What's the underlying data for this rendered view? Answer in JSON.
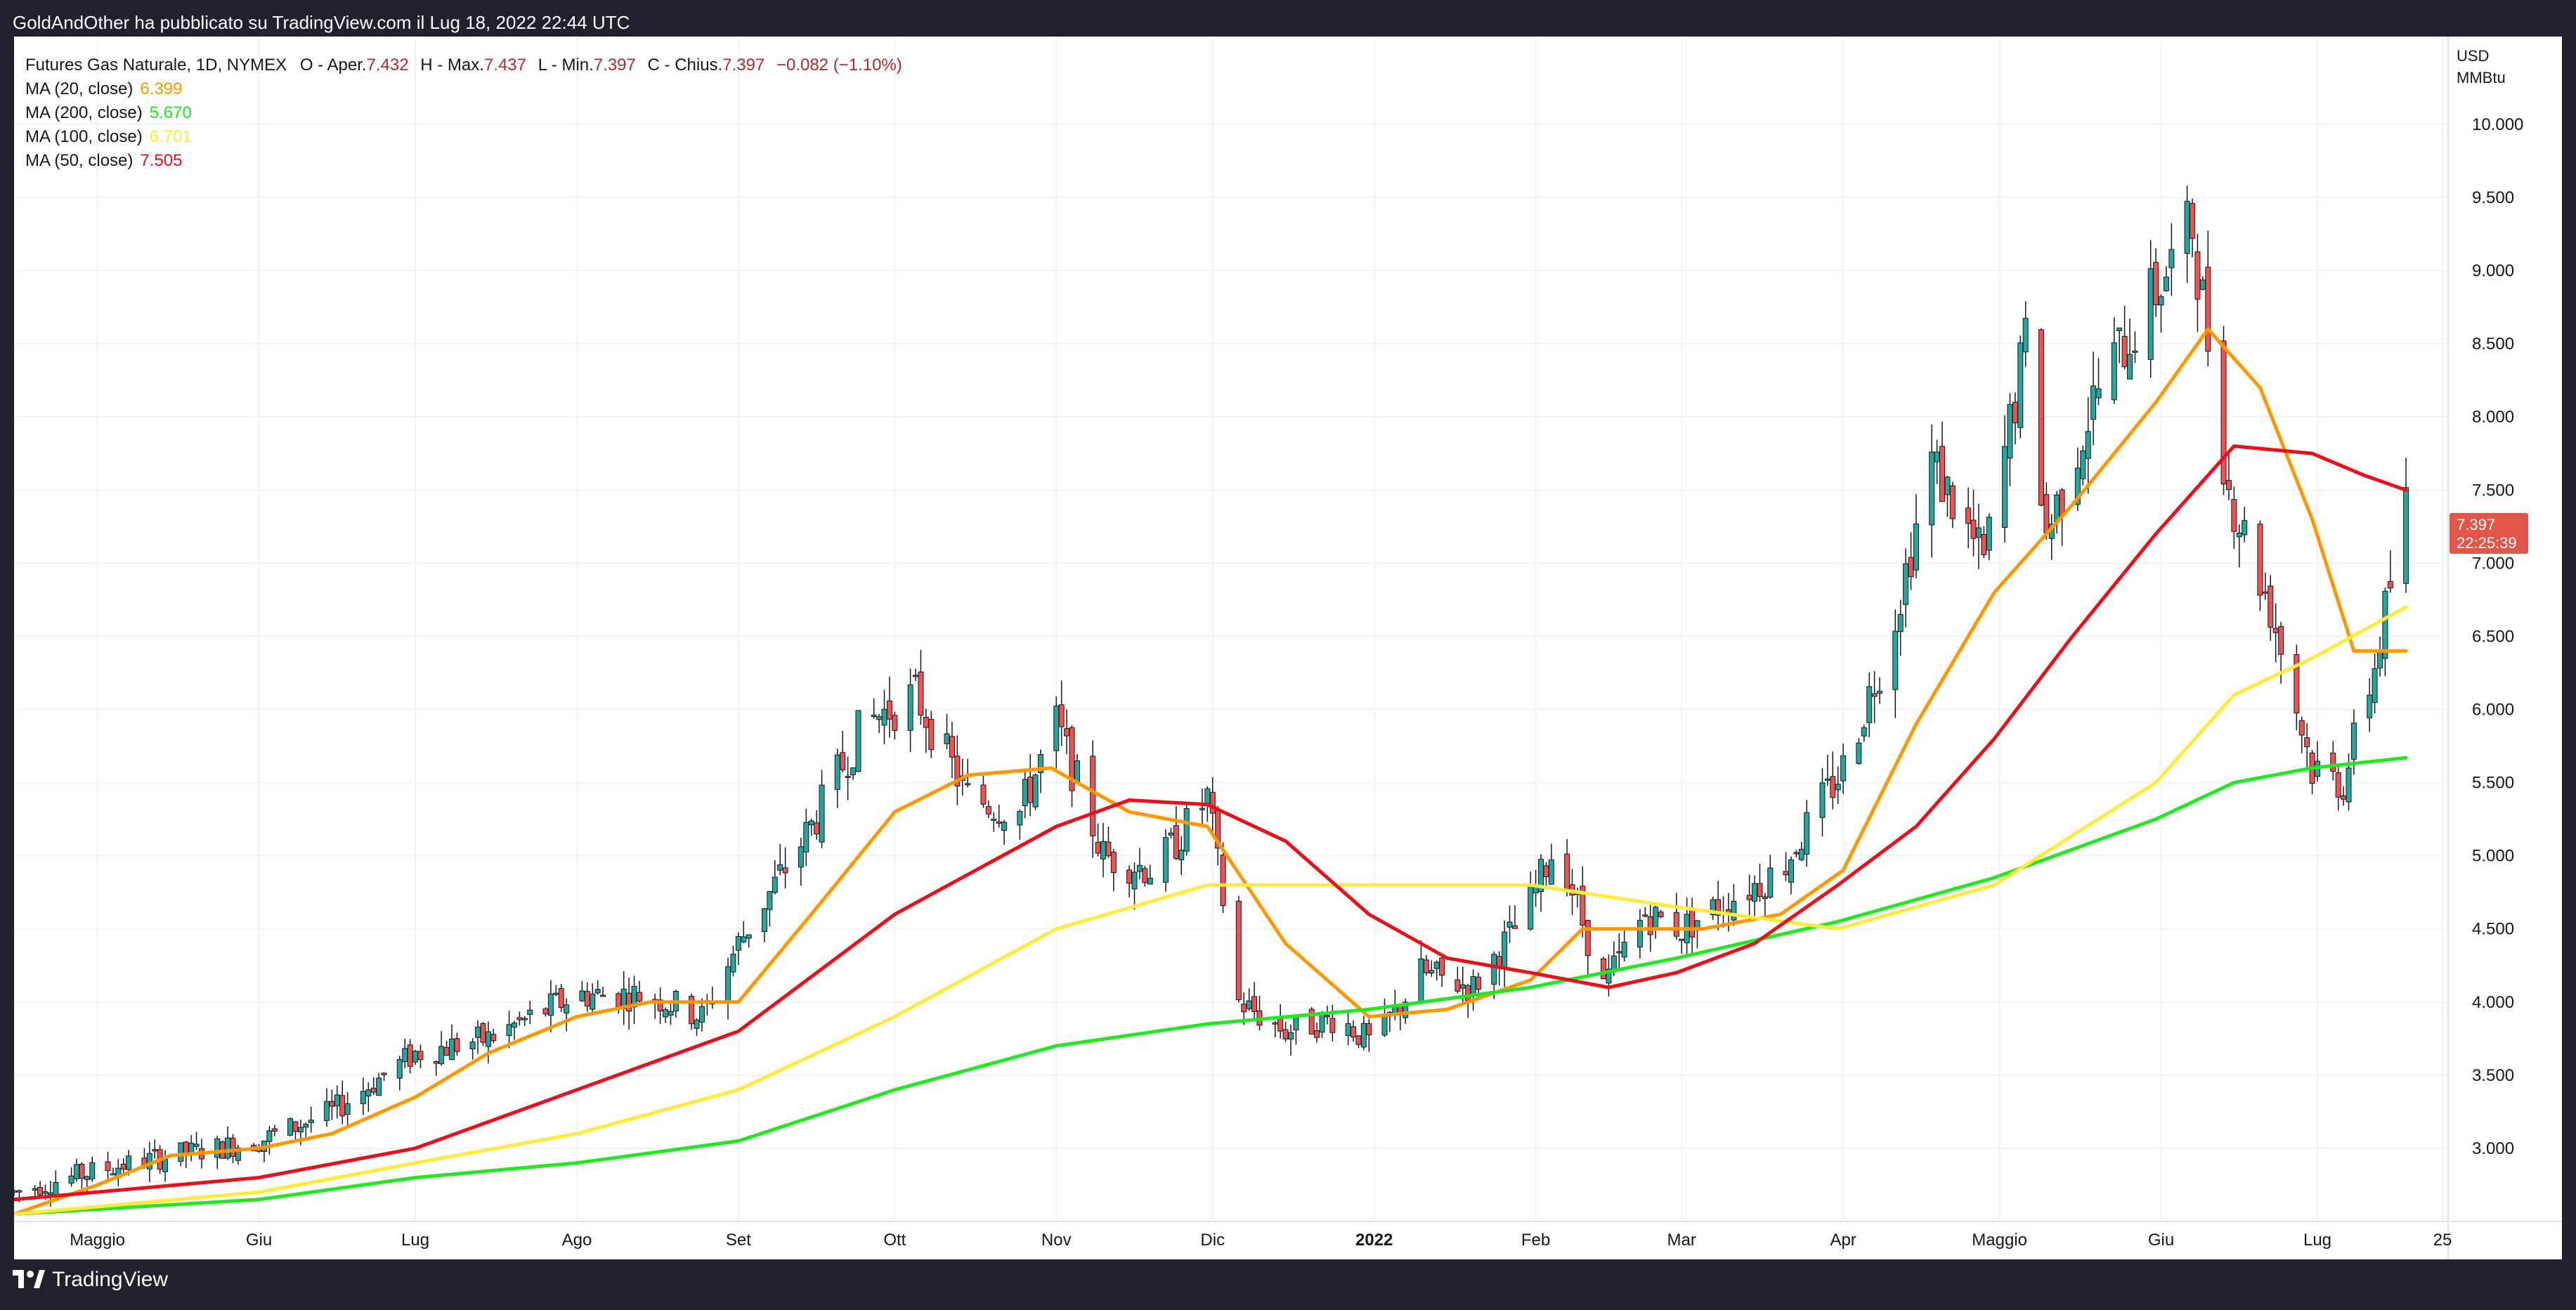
{
  "header": {
    "published": "GoldAndOther ha pubblicato su TradingView.com il Lug 18, 2022 22:44 UTC"
  },
  "legend": {
    "symbol": "Futures Gas Naturale, 1D, NYMEX",
    "open_label": "O - Aper.",
    "open": "7.432",
    "high_label": "H - Max.",
    "high": "7.437",
    "low_label": "L - Min.",
    "low": "7.397",
    "close_label": "C - Chius.",
    "close": "7.397",
    "change": "−0.082 (−1.10%)",
    "indicators": [
      {
        "label": "MA (20, close)",
        "value": "6.399",
        "color": "#ff9800"
      },
      {
        "label": "MA (200, close)",
        "value": "5.670",
        "color": "#22e822"
      },
      {
        "label": "MA (100, close)",
        "value": "6.701",
        "color": "#ffeb3b"
      },
      {
        "label": "MA (50, close)",
        "value": "7.505",
        "color": "#e8101a"
      }
    ]
  },
  "price_badge": {
    "price": "7.397",
    "countdown": "22:25:39",
    "color": "#e0574a"
  },
  "footer": {
    "brand": "TradingView"
  },
  "colors": {
    "up": "#26a69a",
    "down": "#ef5350",
    "grid": "#f0f3fa",
    "axis_text": "#131722",
    "panel_bg": "#ffffff",
    "frame_bg": "#1e222d"
  },
  "chart_data": {
    "type": "candlestick",
    "title": "Futures Gas Naturale, 1D, NYMEX",
    "currency": "USD",
    "unit": "MMBtu",
    "x_range": [
      "2021-04-15",
      "2022-07-25"
    ],
    "ylim": [
      2.5,
      10.6
    ],
    "y_ticks": [
      "3.000",
      "3.500",
      "4.000",
      "4.500",
      "5.000",
      "5.500",
      "6.000",
      "6.500",
      "7.000",
      "7.500",
      "8.000",
      "8.500",
      "9.000",
      "9.500",
      "10.000"
    ],
    "x_ticks": [
      {
        "label": "Maggio",
        "date": "2021-05-01",
        "bold": false
      },
      {
        "label": "Giu",
        "date": "2021-06-01",
        "bold": false
      },
      {
        "label": "Lug",
        "date": "2021-07-01",
        "bold": false
      },
      {
        "label": "Ago",
        "date": "2021-08-01",
        "bold": false
      },
      {
        "label": "Set",
        "date": "2021-09-01",
        "bold": false
      },
      {
        "label": "Ott",
        "date": "2021-10-01",
        "bold": false
      },
      {
        "label": "Nov",
        "date": "2021-11-01",
        "bold": false
      },
      {
        "label": "Dic",
        "date": "2021-12-01",
        "bold": false
      },
      {
        "label": "2022",
        "date": "2022-01-01",
        "bold": true
      },
      {
        "label": "Feb",
        "date": "2022-02-01",
        "bold": false
      },
      {
        "label": "Mar",
        "date": "2022-03-01",
        "bold": false
      },
      {
        "label": "Apr",
        "date": "2022-04-01",
        "bold": false
      },
      {
        "label": "Maggio",
        "date": "2022-05-01",
        "bold": false
      },
      {
        "label": "Giu",
        "date": "2022-06-01",
        "bold": false
      },
      {
        "label": "Lug",
        "date": "2022-07-01",
        "bold": false
      },
      {
        "label": "25",
        "date": "2022-07-25",
        "bold": false
      }
    ],
    "price_path": [
      [
        "2021-04-15",
        2.7
      ],
      [
        "2021-05-01",
        2.85
      ],
      [
        "2021-05-15",
        2.95
      ],
      [
        "2021-06-01",
        3.05
      ],
      [
        "2021-06-15",
        3.25
      ],
      [
        "2021-07-01",
        3.65
      ],
      [
        "2021-07-15",
        3.75
      ],
      [
        "2021-08-01",
        4.05
      ],
      [
        "2021-08-15",
        4.05
      ],
      [
        "2021-08-25",
        3.9
      ],
      [
        "2021-09-01",
        4.4
      ],
      [
        "2021-09-15",
        5.2
      ],
      [
        "2021-09-25",
        5.9
      ],
      [
        "2021-10-05",
        6.1
      ],
      [
        "2021-10-15",
        5.4
      ],
      [
        "2021-10-25",
        5.3
      ],
      [
        "2021-11-01",
        5.9
      ],
      [
        "2021-11-10",
        5.0
      ],
      [
        "2021-11-20",
        4.9
      ],
      [
        "2021-11-30",
        5.4
      ],
      [
        "2021-12-06",
        4.0
      ],
      [
        "2021-12-15",
        3.8
      ],
      [
        "2021-12-25",
        3.9
      ],
      [
        "2022-01-01",
        3.7
      ],
      [
        "2022-01-10",
        4.2
      ],
      [
        "2022-01-20",
        4.1
      ],
      [
        "2022-01-30",
        4.6
      ],
      [
        "2022-02-05",
        5.1
      ],
      [
        "2022-02-14",
        4.1
      ],
      [
        "2022-02-22",
        4.6
      ],
      [
        "2022-03-01",
        4.5
      ],
      [
        "2022-03-10",
        4.7
      ],
      [
        "2022-03-20",
        4.9
      ],
      [
        "2022-04-01",
        5.6
      ],
      [
        "2022-04-10",
        6.5
      ],
      [
        "2022-04-18",
        7.7
      ],
      [
        "2022-04-28",
        7.0
      ],
      [
        "2022-05-06",
        8.5
      ],
      [
        "2022-05-10",
        7.2
      ],
      [
        "2022-05-20",
        8.2
      ],
      [
        "2022-05-30",
        8.8
      ],
      [
        "2022-06-07",
        9.3
      ],
      [
        "2022-06-14",
        7.5
      ],
      [
        "2022-06-22",
        6.7
      ],
      [
        "2022-06-30",
        5.6
      ],
      [
        "2022-07-06",
        5.5
      ],
      [
        "2022-07-12",
        6.3
      ],
      [
        "2022-07-18",
        7.4
      ]
    ],
    "series": [
      {
        "name": "MA (20, close)",
        "color": "#ff9800",
        "points": [
          [
            "2021-04-15",
            2.55
          ],
          [
            "2021-05-01",
            2.75
          ],
          [
            "2021-05-15",
            2.95
          ],
          [
            "2021-06-01",
            3.0
          ],
          [
            "2021-06-15",
            3.1
          ],
          [
            "2021-07-01",
            3.35
          ],
          [
            "2021-07-15",
            3.65
          ],
          [
            "2021-08-01",
            3.9
          ],
          [
            "2021-08-15",
            4.0
          ],
          [
            "2021-09-01",
            4.0
          ],
          [
            "2021-09-15",
            4.6
          ],
          [
            "2021-10-01",
            5.3
          ],
          [
            "2021-10-15",
            5.55
          ],
          [
            "2021-10-31",
            5.6
          ],
          [
            "2021-11-15",
            5.3
          ],
          [
            "2021-11-30",
            5.2
          ],
          [
            "2021-12-15",
            4.4
          ],
          [
            "2021-12-31",
            3.9
          ],
          [
            "2022-01-15",
            3.95
          ],
          [
            "2022-01-31",
            4.15
          ],
          [
            "2022-02-10",
            4.5
          ],
          [
            "2022-02-20",
            4.5
          ],
          [
            "2022-03-05",
            4.5
          ],
          [
            "2022-03-20",
            4.6
          ],
          [
            "2022-04-01",
            4.9
          ],
          [
            "2022-04-15",
            5.9
          ],
          [
            "2022-04-30",
            6.8
          ],
          [
            "2022-05-15",
            7.4
          ],
          [
            "2022-05-31",
            8.1
          ],
          [
            "2022-06-10",
            8.6
          ],
          [
            "2022-06-20",
            8.2
          ],
          [
            "2022-06-30",
            7.3
          ],
          [
            "2022-07-08",
            6.4
          ],
          [
            "2022-07-18",
            6.4
          ]
        ]
      },
      {
        "name": "MA (200, close)",
        "color": "#22e822",
        "points": [
          [
            "2021-04-15",
            2.55
          ],
          [
            "2021-06-01",
            2.65
          ],
          [
            "2021-07-01",
            2.8
          ],
          [
            "2021-08-01",
            2.9
          ],
          [
            "2021-09-01",
            3.05
          ],
          [
            "2021-10-01",
            3.4
          ],
          [
            "2021-11-01",
            3.7
          ],
          [
            "2021-11-30",
            3.85
          ],
          [
            "2021-12-31",
            3.95
          ],
          [
            "2022-01-31",
            4.1
          ],
          [
            "2022-02-28",
            4.3
          ],
          [
            "2022-03-31",
            4.55
          ],
          [
            "2022-04-30",
            4.85
          ],
          [
            "2022-05-31",
            5.25
          ],
          [
            "2022-06-15",
            5.5
          ],
          [
            "2022-06-30",
            5.6
          ],
          [
            "2022-07-18",
            5.67
          ]
        ]
      },
      {
        "name": "MA (100, close)",
        "color": "#ffeb3b",
        "points": [
          [
            "2021-04-15",
            2.55
          ],
          [
            "2021-06-01",
            2.7
          ],
          [
            "2021-07-01",
            2.9
          ],
          [
            "2021-08-01",
            3.1
          ],
          [
            "2021-09-01",
            3.4
          ],
          [
            "2021-10-01",
            3.9
          ],
          [
            "2021-11-01",
            4.5
          ],
          [
            "2021-11-30",
            4.8
          ],
          [
            "2021-12-31",
            4.8
          ],
          [
            "2022-01-31",
            4.8
          ],
          [
            "2022-02-28",
            4.65
          ],
          [
            "2022-03-31",
            4.5
          ],
          [
            "2022-04-30",
            4.8
          ],
          [
            "2022-05-31",
            5.5
          ],
          [
            "2022-06-15",
            6.1
          ],
          [
            "2022-06-30",
            6.35
          ],
          [
            "2022-07-18",
            6.7
          ]
        ]
      },
      {
        "name": "MA (50, close)",
        "color": "#e8101a",
        "points": [
          [
            "2021-04-15",
            2.65
          ],
          [
            "2021-06-01",
            2.8
          ],
          [
            "2021-07-01",
            3.0
          ],
          [
            "2021-08-01",
            3.4
          ],
          [
            "2021-09-01",
            3.8
          ],
          [
            "2021-10-01",
            4.6
          ],
          [
            "2021-11-01",
            5.2
          ],
          [
            "2021-11-15",
            5.38
          ],
          [
            "2021-11-30",
            5.35
          ],
          [
            "2021-12-15",
            5.1
          ],
          [
            "2021-12-31",
            4.6
          ],
          [
            "2022-01-15",
            4.3
          ],
          [
            "2022-01-31",
            4.2
          ],
          [
            "2022-02-15",
            4.1
          ],
          [
            "2022-02-28",
            4.2
          ],
          [
            "2022-03-15",
            4.4
          ],
          [
            "2022-03-31",
            4.8
          ],
          [
            "2022-04-15",
            5.2
          ],
          [
            "2022-04-30",
            5.8
          ],
          [
            "2022-05-15",
            6.5
          ],
          [
            "2022-05-31",
            7.2
          ],
          [
            "2022-06-15",
            7.8
          ],
          [
            "2022-06-30",
            7.75
          ],
          [
            "2022-07-10",
            7.6
          ],
          [
            "2022-07-18",
            7.5
          ]
        ]
      }
    ]
  }
}
